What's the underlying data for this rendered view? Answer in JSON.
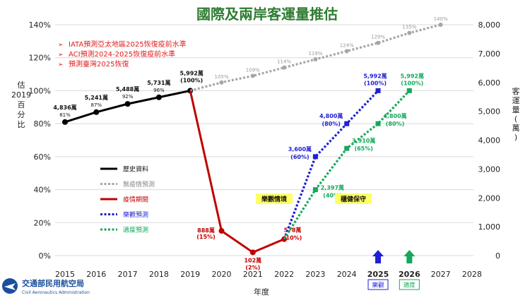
{
  "chart_data": {
    "type": "line",
    "title": "國際及兩岸客運量推估",
    "xlabel": "年度",
    "ylabel_left": "估2019百分比",
    "ylabel_right": "客運量(萬)",
    "x_ticks": [
      "2015",
      "2016",
      "2017",
      "2018",
      "2019",
      "2020",
      "2021",
      "2022",
      "2023",
      "2024",
      "2025",
      "2026",
      "2027",
      "2028"
    ],
    "y_left_ticks": [
      "0%",
      "20%",
      "40%",
      "60%",
      "80%",
      "100%",
      "120%",
      "140%"
    ],
    "y_right_ticks": [
      "0",
      "1,000",
      "2,000",
      "3,000",
      "4,000",
      "5,000",
      "6,000",
      "7,000",
      "8,000"
    ],
    "ylim_left": [
      0,
      140
    ],
    "ylim_right": [
      0,
      8000
    ],
    "grid": true,
    "legend_position": "bottom-left",
    "notes": [
      "IATA預測亞太地區2025恢復疫前水準",
      "ACI預測2024-2025恢復疫前水準",
      "預測臺灣2025恢復"
    ],
    "series": [
      {
        "name": "歷史資料",
        "color": "#000000",
        "dash": "solid",
        "points": [
          {
            "x": 2015,
            "pct": 81,
            "label": "4,836萬",
            "sub": "81%"
          },
          {
            "x": 2016,
            "pct": 87,
            "label": "5,241萬",
            "sub": "87%"
          },
          {
            "x": 2017,
            "pct": 92,
            "label": "5,488萬",
            "sub": "92%"
          },
          {
            "x": 2018,
            "pct": 96,
            "label": "5,731萬",
            "sub": "96%"
          },
          {
            "x": 2019,
            "pct": 100,
            "label": "5,992萬",
            "sub": "(100%)"
          }
        ]
      },
      {
        "name": "無疫情預測",
        "color": "#a6a6a6",
        "dash": "dotted",
        "points": [
          {
            "x": 2019,
            "pct": 100,
            "label": "",
            "sub": ""
          },
          {
            "x": 2020,
            "pct": 105,
            "label": "",
            "sub": "105%"
          },
          {
            "x": 2021,
            "pct": 109,
            "label": "",
            "sub": "109%"
          },
          {
            "x": 2022,
            "pct": 114,
            "label": "",
            "sub": "114%"
          },
          {
            "x": 2023,
            "pct": 119,
            "label": "",
            "sub": "119%"
          },
          {
            "x": 2024,
            "pct": 124,
            "label": "",
            "sub": "124%"
          },
          {
            "x": 2025,
            "pct": 129,
            "label": "",
            "sub": "129%"
          },
          {
            "x": 2026,
            "pct": 135,
            "label": "",
            "sub": "135%"
          },
          {
            "x": 2027,
            "pct": 140,
            "label": "",
            "sub": "140%"
          }
        ]
      },
      {
        "name": "疫情期間",
        "color": "#c00000",
        "dash": "solid",
        "points": [
          {
            "x": 2019,
            "pct": 100,
            "label": "",
            "sub": ""
          },
          {
            "x": 2020,
            "pct": 15,
            "label": "888萬",
            "sub": "(15%)"
          },
          {
            "x": 2021,
            "pct": 2,
            "label": "102萬",
            "sub": "(2%)"
          },
          {
            "x": 2022,
            "pct": 10,
            "label": "578萬",
            "sub": "(10%)"
          }
        ]
      },
      {
        "name": "樂觀預測",
        "color": "#1f1fd6",
        "dash": "dotted",
        "points": [
          {
            "x": 2022,
            "pct": 10,
            "label": "",
            "sub": ""
          },
          {
            "x": 2023,
            "pct": 60,
            "label": "3,600萬",
            "sub": "(60%)"
          },
          {
            "x": 2024,
            "pct": 80,
            "label": "4,800萬",
            "sub": "(80%)"
          },
          {
            "x": 2025,
            "pct": 100,
            "label": "5,992萬",
            "sub": "(100%)"
          }
        ]
      },
      {
        "name": "適度預測",
        "color": "#14a85a",
        "dash": "dotted",
        "points": [
          {
            "x": 2022,
            "pct": 10,
            "label": "",
            "sub": ""
          },
          {
            "x": 2023,
            "pct": 40,
            "label": "2,397萬",
            "sub": "(40%)"
          },
          {
            "x": 2024,
            "pct": 65,
            "label": "3,910萬",
            "sub": "(65%)"
          },
          {
            "x": 2025,
            "pct": 80,
            "label": "4,800萬",
            "sub": "(80%)"
          },
          {
            "x": 2026,
            "pct": 100,
            "label": "5,992萬",
            "sub": "(100%)"
          }
        ]
      }
    ],
    "scenario_badges": [
      {
        "text": "樂觀情境",
        "color": "#ffff66"
      },
      {
        "text": "穩健保守",
        "color": "#ffff66"
      }
    ],
    "target_markers": [
      {
        "x": 2025,
        "year_label": "2025",
        "tag": "樂觀",
        "color": "#1f1fd6"
      },
      {
        "x": 2026,
        "year_label": "2026",
        "tag": "適度",
        "color": "#14a85a"
      }
    ]
  },
  "logo": {
    "name_zh": "交通部民用航空局",
    "name_en": "Civil Aeronautics Administration",
    "color": "#1b4f9c"
  }
}
